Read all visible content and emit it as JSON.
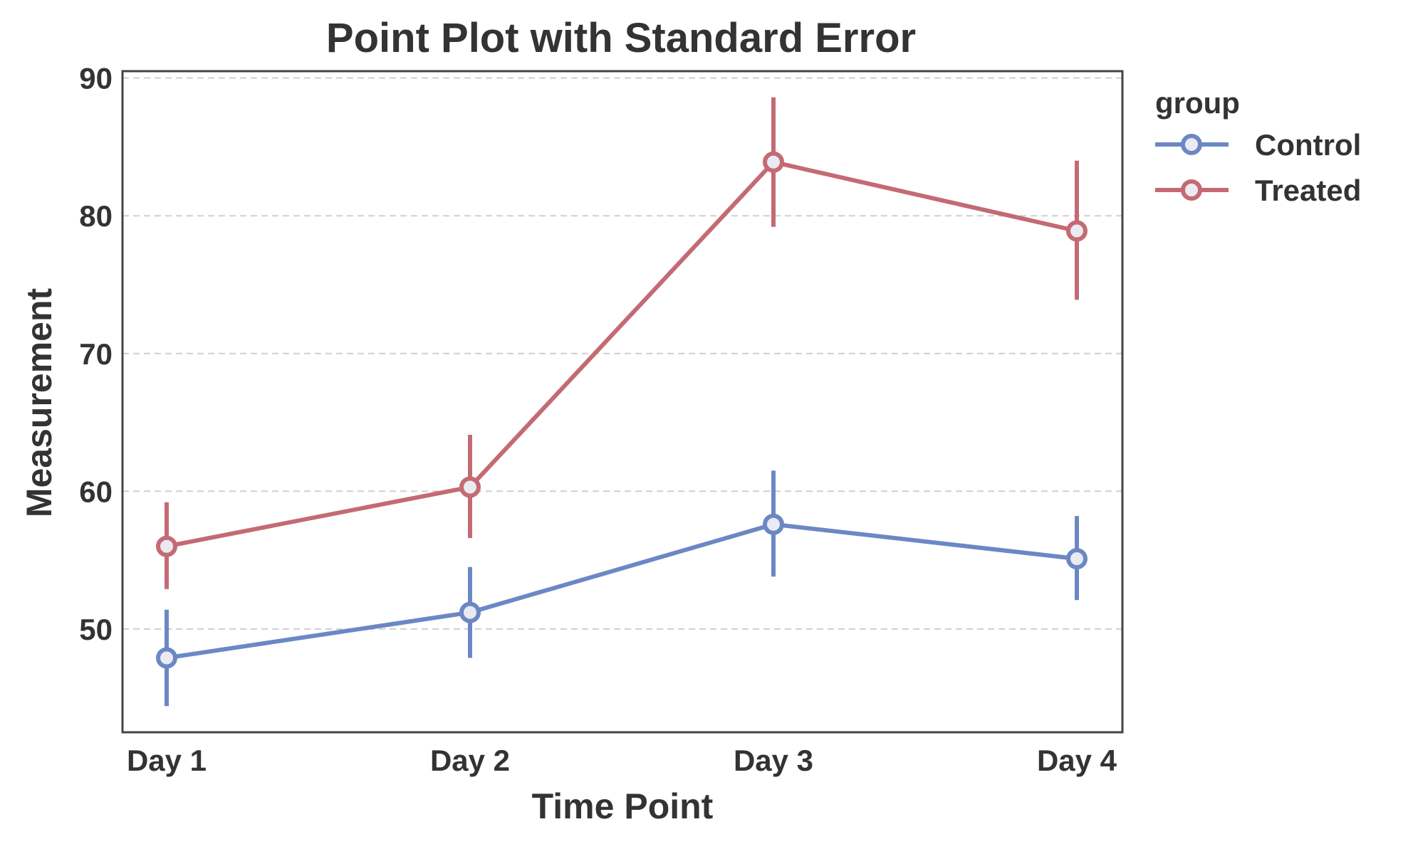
{
  "chart_data": {
    "type": "line",
    "title": "Point Plot with Standard Error",
    "xlabel": "Time Point",
    "ylabel": "Measurement",
    "categories": [
      "Day 1",
      "Day 2",
      "Day 3",
      "Day 4"
    ],
    "ylim": [
      42.5,
      90.5
    ],
    "yticks": [
      50,
      60,
      70,
      80,
      90
    ],
    "grid": "horizontal dashed",
    "legend": {
      "title": "group",
      "placement": "outside right"
    },
    "series": [
      {
        "name": "Control",
        "color": "#6b88c4",
        "values": [
          47.9,
          51.2,
          57.6,
          55.1
        ],
        "error_low": [
          44.4,
          47.9,
          53.8,
          52.1
        ],
        "error_high": [
          51.4,
          54.5,
          61.5,
          58.2
        ]
      },
      {
        "name": "Treated",
        "color": "#c46a74",
        "values": [
          56.0,
          60.3,
          83.9,
          78.9
        ],
        "error_low": [
          52.9,
          56.6,
          79.2,
          73.9
        ],
        "error_high": [
          59.2,
          64.1,
          88.6,
          84.0
        ]
      }
    ]
  }
}
